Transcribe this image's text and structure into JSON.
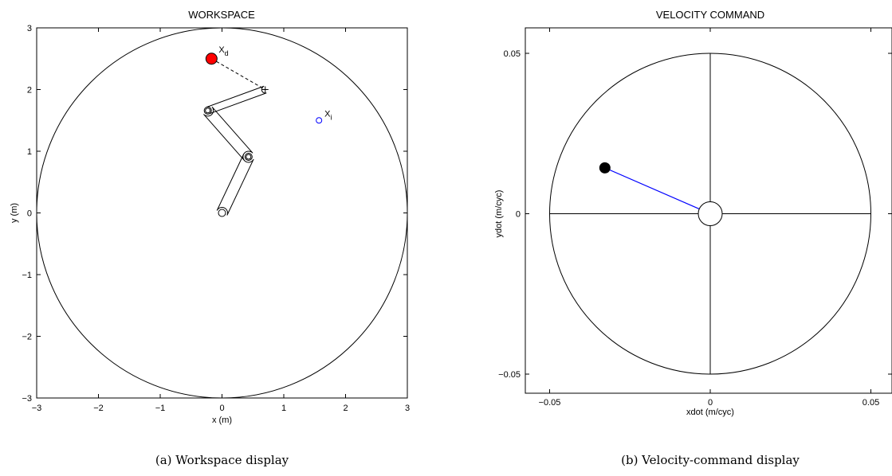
{
  "panels": [
    {
      "id": "workspace",
      "title": "WORKSPACE",
      "xlabel": "x (m)",
      "ylabel": "y (m)",
      "xlim": [
        -3,
        3
      ],
      "ylim": [
        -3,
        3
      ],
      "xticks": [
        "−3",
        "−2",
        "−1",
        "0",
        "1",
        "2",
        "3"
      ],
      "yticks": [
        "−3",
        "−2",
        "−1",
        "0",
        "1",
        "2",
        "3"
      ],
      "boundary_radius": 3,
      "robot_links": [
        {
          "from": [
            0,
            0
          ],
          "to": [
            0.43,
            0.91
          ]
        },
        {
          "from": [
            0.43,
            0.91
          ],
          "to": [
            -0.23,
            1.66
          ]
        },
        {
          "from": [
            -0.23,
            1.66
          ],
          "to": [
            0.7,
            2.0
          ]
        }
      ],
      "end_effector": [
        0.7,
        2.0
      ],
      "desired_target": {
        "label": "X",
        "subscript": "d",
        "pos": [
          -0.17,
          2.5
        ],
        "color": "#ff0000"
      },
      "initial_target": {
        "label": "X",
        "subscript": "i",
        "pos": [
          1.57,
          1.5
        ],
        "color": "#0000ff"
      },
      "caption": "(a) Workspace display"
    },
    {
      "id": "velocity",
      "title": "VELOCITY COMMAND",
      "xlabel": "xdot (m/cyc)",
      "ylabel": "ydot (m/cyc)",
      "xlim": [
        -0.058,
        0.058
      ],
      "ylim": [
        -0.058,
        0.058
      ],
      "xticks": [
        "−0.05",
        "0",
        "0.05"
      ],
      "yticks": [
        "−0.05",
        "0",
        "0.05"
      ],
      "max_radius": 0.05,
      "deadzone_radius": 0.0038,
      "command": {
        "pos": [
          -0.0328,
          0.0143
        ],
        "line_color": "#0000ff",
        "dot_color": "#000000"
      },
      "caption": "(b) Velocity-command display"
    }
  ]
}
